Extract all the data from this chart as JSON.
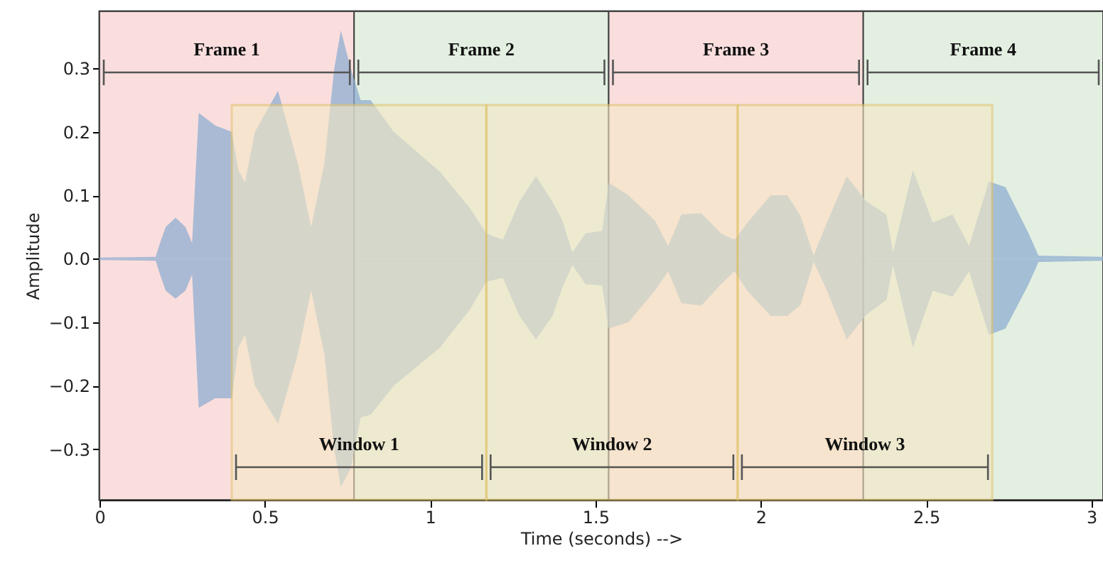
{
  "chart_data": {
    "type": "area",
    "xlabel": "Time (seconds) -->",
    "ylabel": "Amplitude",
    "xlim": [
      0,
      3.035
    ],
    "xticks": [
      0,
      0.5,
      1,
      1.5,
      2,
      2.5,
      3
    ],
    "ylim": [
      -0.38,
      0.39
    ],
    "yticks": [
      {
        "value": -0.3,
        "label": "−0.3"
      },
      {
        "value": -0.2,
        "label": "−0.2"
      },
      {
        "value": -0.1,
        "label": "−0.1"
      },
      {
        "value": 0,
        "label": "0.0"
      },
      {
        "value": 0.1,
        "label": "0.1"
      },
      {
        "value": 0.2,
        "label": "0.2"
      },
      {
        "value": 0.3,
        "label": "0.3"
      }
    ],
    "series": [
      {
        "color": "#8fadd0",
        "x": [
          0,
          0.17,
          0.18,
          0.2,
          0.23,
          0.26,
          0.28,
          0.3,
          0.35,
          0.4,
          0.42,
          0.44,
          0.47,
          0.54,
          0.6,
          0.64,
          0.68,
          0.71,
          0.73,
          0.76,
          0.79,
          0.82,
          0.89,
          1.03,
          1.12,
          1.17,
          1.22,
          1.27,
          1.32,
          1.37,
          1.4,
          1.43,
          1.47,
          1.52,
          1.54,
          1.6,
          1.68,
          1.72,
          1.76,
          1.82,
          1.88,
          1.92,
          1.96,
          2.03,
          2.08,
          2.12,
          2.16,
          2.2,
          2.26,
          2.32,
          2.38,
          2.4,
          2.46,
          2.52,
          2.58,
          2.63,
          2.69,
          2.74,
          2.81,
          2.84,
          3.035
        ],
        "values": [
          0.002,
          0.003,
          0.02,
          0.05,
          0.065,
          0.05,
          0.025,
          0.23,
          0.21,
          0.2,
          0.14,
          0.12,
          0.2,
          0.265,
          0.15,
          0.05,
          0.15,
          0.3,
          0.36,
          0.3,
          0.25,
          0.25,
          0.2,
          0.137,
          0.08,
          0.04,
          0.03,
          0.09,
          0.13,
          0.09,
          0.06,
          0.01,
          0.04,
          0.044,
          0.12,
          0.1,
          0.06,
          0.02,
          0.07,
          0.072,
          0.04,
          0.03,
          0.057,
          0.1,
          0.1,
          0.068,
          0.005,
          0.057,
          0.13,
          0.09,
          0.07,
          0.01,
          0.14,
          0.057,
          0.07,
          0.02,
          0.122,
          0.113,
          0.04,
          0.005,
          0.003
        ]
      },
      {
        "color": "#8fadd0",
        "x": [
          0,
          0.17,
          0.18,
          0.2,
          0.23,
          0.26,
          0.28,
          0.3,
          0.35,
          0.4,
          0.42,
          0.44,
          0.47,
          0.54,
          0.6,
          0.64,
          0.68,
          0.71,
          0.73,
          0.76,
          0.79,
          0.82,
          0.89,
          1.03,
          1.12,
          1.17,
          1.22,
          1.27,
          1.32,
          1.37,
          1.4,
          1.43,
          1.47,
          1.52,
          1.54,
          1.6,
          1.68,
          1.72,
          1.76,
          1.82,
          1.88,
          1.92,
          1.96,
          2.03,
          2.08,
          2.12,
          2.16,
          2.2,
          2.26,
          2.32,
          2.38,
          2.4,
          2.46,
          2.52,
          2.58,
          2.63,
          2.69,
          2.74,
          2.81,
          2.84,
          3.035
        ],
        "values": [
          -0.002,
          -0.003,
          -0.02,
          -0.05,
          -0.063,
          -0.05,
          -0.025,
          -0.235,
          -0.22,
          -0.22,
          -0.14,
          -0.12,
          -0.2,
          -0.26,
          -0.15,
          -0.05,
          -0.15,
          -0.3,
          -0.36,
          -0.33,
          -0.25,
          -0.246,
          -0.2,
          -0.14,
          -0.08,
          -0.036,
          -0.03,
          -0.09,
          -0.127,
          -0.09,
          -0.045,
          -0.01,
          -0.04,
          -0.042,
          -0.11,
          -0.1,
          -0.05,
          -0.02,
          -0.07,
          -0.074,
          -0.04,
          -0.02,
          -0.051,
          -0.09,
          -0.09,
          -0.073,
          -0.005,
          -0.05,
          -0.127,
          -0.088,
          -0.065,
          -0.01,
          -0.14,
          -0.05,
          -0.06,
          -0.02,
          -0.12,
          -0.11,
          -0.04,
          -0.005,
          -0.003
        ]
      }
    ],
    "bands": [
      {
        "axis": "x",
        "from": 0,
        "to": 0.77,
        "label": "Frame 1",
        "color": "#fadede"
      },
      {
        "axis": "x",
        "from": 0.77,
        "to": 1.54,
        "label": "Frame 2",
        "color": "#e3efe1"
      },
      {
        "axis": "x",
        "from": 1.54,
        "to": 2.31,
        "label": "Frame 3",
        "color": "#fadede"
      },
      {
        "axis": "x",
        "from": 2.31,
        "to": 3.035,
        "label": "Frame 4",
        "color": "#e3efe1"
      },
      {
        "axis": "x",
        "from": 0.4,
        "to": 1.17,
        "label": "Window 1",
        "color": "#f4e8c4"
      },
      {
        "axis": "x",
        "from": 1.17,
        "to": 1.93,
        "label": "Window 2",
        "color": "#f4e8c4"
      },
      {
        "axis": "x",
        "from": 1.93,
        "to": 2.7,
        "label": "Window 3",
        "color": "#f4e8c4"
      }
    ]
  }
}
